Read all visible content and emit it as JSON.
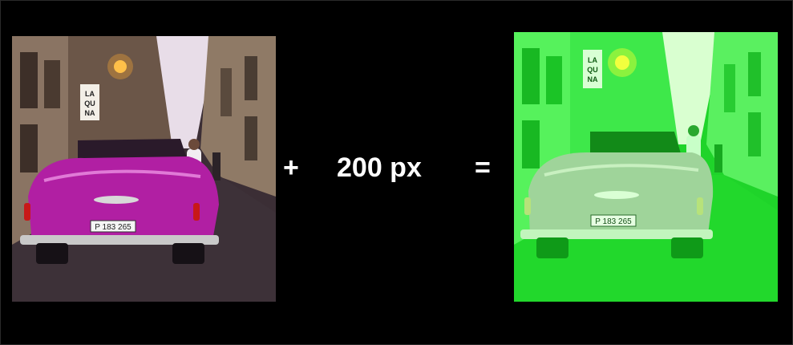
{
  "operation": {
    "plus": "+",
    "amount": "200 px",
    "equals": "="
  },
  "images": {
    "before": {
      "description_icon": "photo-icon",
      "plate_text": "P 183 265",
      "sign_text": [
        "LA",
        "QU",
        "NA"
      ],
      "car_color": "#b11fa3"
    },
    "after": {
      "description_icon": "photo-icon",
      "plate_text": "P 183 265",
      "sign_text": [
        "LA",
        "QU",
        "NA"
      ],
      "tint_color": "#22f02a"
    }
  },
  "colors": {
    "background": "#000000",
    "text": "#ffffff"
  }
}
